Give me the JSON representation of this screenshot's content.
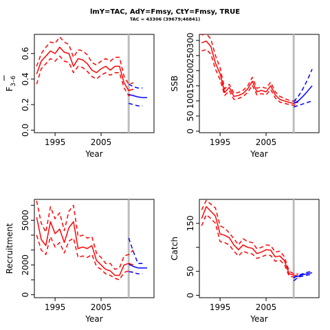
{
  "title": "lmY=TAC, AdY=Fmsy, CtY=Fmsy, TRUE",
  "subtitle": "TAC = 43306 (39679;46841)",
  "colors": {
    "historical": "#ff0000",
    "projection": "#0000ff",
    "marker": "#bdbdbd",
    "axis": "#000000"
  },
  "chart_data": [
    {
      "type": "line",
      "ylabel": "F̅ 3–6",
      "ylabel_main": "F",
      "ylabel_sub": "3–6",
      "xlabel": "Year",
      "xlim": [
        1990.5,
        2016.5
      ],
      "ylim": [
        -0.02,
        0.75
      ],
      "xticks": [
        1995,
        2005
      ],
      "xtick_labels": [
        "1995",
        "2005"
      ],
      "yticks": [
        0,
        0.2,
        0.4,
        0.6
      ],
      "ytick_labels": [
        "0.0",
        "0.2",
        "0.4",
        "0.6"
      ],
      "marker_year": 2011,
      "series": [
        {
          "style": "solid",
          "color": "#ff0000",
          "x": [
            1991,
            1992,
            1993,
            1994,
            1995,
            1996,
            1997,
            1998,
            1999,
            2000,
            2001,
            2002,
            2003,
            2004,
            2005,
            2006,
            2007,
            2008,
            2009,
            2010,
            2011,
            2012
          ],
          "y": [
            0.44,
            0.54,
            0.58,
            0.62,
            0.6,
            0.65,
            0.61,
            0.6,
            0.5,
            0.56,
            0.55,
            0.52,
            0.47,
            0.45,
            0.48,
            0.5,
            0.47,
            0.5,
            0.5,
            0.37,
            0.31,
            0.32
          ]
        },
        {
          "style": "dashed",
          "color": "#ff0000",
          "x": [
            1991,
            1992,
            1993,
            1994,
            1995,
            1996,
            1997,
            1998,
            1999,
            2000,
            2001,
            2002,
            2003,
            2004,
            2005,
            2006,
            2007,
            2008,
            2009,
            2010,
            2011,
            2012
          ],
          "y": [
            0.5,
            0.6,
            0.65,
            0.69,
            0.68,
            0.73,
            0.69,
            0.67,
            0.57,
            0.63,
            0.62,
            0.59,
            0.53,
            0.51,
            0.54,
            0.56,
            0.54,
            0.57,
            0.57,
            0.42,
            0.36,
            0.37
          ]
        },
        {
          "style": "dashed",
          "color": "#ff0000",
          "x": [
            1991,
            1992,
            1993,
            1994,
            1995,
            1996,
            1997,
            1998,
            1999,
            2000,
            2001,
            2002,
            2003,
            2004,
            2005,
            2006,
            2007,
            2008,
            2009,
            2010,
            2011,
            2012
          ],
          "y": [
            0.36,
            0.48,
            0.52,
            0.56,
            0.54,
            0.58,
            0.54,
            0.53,
            0.45,
            0.5,
            0.49,
            0.46,
            0.42,
            0.4,
            0.43,
            0.45,
            0.43,
            0.45,
            0.45,
            0.33,
            0.27,
            0.28
          ]
        },
        {
          "style": "solid",
          "color": "#0000ff",
          "x": [
            2011,
            2012,
            2013,
            2014,
            2015
          ],
          "y": [
            0.28,
            0.27,
            0.26,
            0.255,
            0.255
          ]
        },
        {
          "style": "dashed",
          "color": "#0000ff",
          "x": [
            2011,
            2012,
            2013,
            2014
          ],
          "y": [
            0.36,
            0.34,
            0.33,
            0.33
          ]
        },
        {
          "style": "dashed",
          "color": "#0000ff",
          "x": [
            2011,
            2012,
            2013,
            2014
          ],
          "y": [
            0.21,
            0.2,
            0.19,
            0.19
          ]
        }
      ]
    },
    {
      "type": "line",
      "ylabel": "SSB",
      "xlabel": "Year",
      "xlim": [
        1990.5,
        2016.5
      ],
      "ylim": [
        -5,
        320
      ],
      "xticks": [
        1995,
        2005
      ],
      "xtick_labels": [
        "1995",
        "2005"
      ],
      "yticks": [
        0,
        50,
        100,
        150,
        200,
        250,
        300
      ],
      "ytick_labels": [
        "0",
        "50",
        "100",
        "150",
        "200",
        "250",
        "300"
      ],
      "marker_year": 2011,
      "series": [
        {
          "style": "solid",
          "color": "#ff0000",
          "x": [
            1991,
            1992,
            1993,
            1994,
            1995,
            1996,
            1997,
            1998,
            1999,
            2000,
            2001,
            2002,
            2003,
            2004,
            2005,
            2006,
            2007,
            2008,
            2009,
            2010,
            2011,
            2012
          ],
          "y": [
            292,
            298,
            280,
            225,
            190,
            128,
            145,
            115,
            118,
            125,
            140,
            165,
            130,
            135,
            130,
            150,
            120,
            105,
            100,
            95,
            92,
            96
          ]
        },
        {
          "style": "dashed",
          "color": "#ff0000",
          "x": [
            1991,
            1992,
            1993,
            1994,
            1995,
            1996,
            1997,
            1998,
            1999,
            2000,
            2001,
            2002,
            2003,
            2004,
            2005,
            2006,
            2007,
            2008,
            2009,
            2010,
            2011,
            2012
          ],
          "y": [
            318,
            322,
            305,
            250,
            210,
            140,
            155,
            125,
            128,
            135,
            150,
            178,
            142,
            146,
            142,
            162,
            130,
            115,
            108,
            102,
            99,
            104
          ]
        },
        {
          "style": "dashed",
          "color": "#ff0000",
          "x": [
            1991,
            1992,
            1993,
            1994,
            1995,
            1996,
            1997,
            1998,
            1999,
            2000,
            2001,
            2002,
            2003,
            2004,
            2005,
            2006,
            2007,
            2008,
            2009,
            2010,
            2011,
            2012
          ],
          "y": [
            265,
            270,
            255,
            205,
            170,
            118,
            134,
            105,
            108,
            115,
            128,
            152,
            120,
            124,
            120,
            138,
            110,
            96,
            92,
            88,
            86,
            88
          ]
        },
        {
          "style": "solid",
          "color": "#0000ff",
          "x": [
            2011,
            2012,
            2013,
            2014,
            2015
          ],
          "y": [
            92,
            100,
            115,
            132,
            150
          ]
        },
        {
          "style": "dashed",
          "color": "#0000ff",
          "x": [
            2011,
            2012,
            2013,
            2014,
            2015
          ],
          "y": [
            98,
            115,
            140,
            170,
            205
          ]
        },
        {
          "style": "dashed",
          "color": "#0000ff",
          "x": [
            2011,
            2012,
            2013,
            2014,
            2015
          ],
          "y": [
            80,
            85,
            90,
            95,
            100
          ]
        }
      ]
    },
    {
      "type": "line",
      "ylabel": "Recruitment",
      "xlabel": "Year",
      "xlim": [
        1990.5,
        2016.5
      ],
      "ylim": [
        -200,
        6400
      ],
      "xticks": [
        1995,
        2005
      ],
      "xtick_labels": [
        "1995",
        "2005"
      ],
      "yticks": [
        0,
        2000,
        5000
      ],
      "ytick_labels": [
        "0",
        "2000",
        "5000"
      ],
      "minor_yticks": [
        1000,
        3000,
        4000,
        6000
      ],
      "marker_year": 2011,
      "series": [
        {
          "style": "solid",
          "color": "#ff0000",
          "x": [
            1991,
            1992,
            1993,
            1994,
            1995,
            1996,
            1997,
            1998,
            1999,
            2000,
            2001,
            2002,
            2003,
            2004,
            2005,
            2006,
            2007,
            2008,
            2009,
            2010,
            2011,
            2012
          ],
          "y": [
            5200,
            3700,
            3300,
            4900,
            4100,
            4400,
            3500,
            4500,
            4900,
            3100,
            3200,
            3100,
            3300,
            2300,
            2000,
            1700,
            1600,
            1300,
            1300,
            2000,
            2100,
            2000
          ]
        },
        {
          "style": "dashed",
          "color": "#ff0000",
          "x": [
            1991,
            1992,
            1993,
            1994,
            1995,
            1996,
            1997,
            1998,
            1999,
            2000,
            2001,
            2002,
            2003,
            2004,
            2005,
            2006,
            2007,
            2008,
            2009,
            2010,
            2011,
            2012
          ],
          "y": [
            6300,
            4800,
            4200,
            5900,
            5100,
            5500,
            4300,
            5600,
            6000,
            3900,
            4000,
            3800,
            3900,
            2800,
            2500,
            2100,
            2100,
            1700,
            1800,
            2600,
            2700,
            3000
          ]
        },
        {
          "style": "dashed",
          "color": "#ff0000",
          "x": [
            1991,
            1992,
            1993,
            1994,
            1995,
            1996,
            1997,
            1998,
            1999,
            2000,
            2001,
            2002,
            2003,
            2004,
            2005,
            2006,
            2007,
            2008,
            2009,
            2010,
            2011,
            2012
          ],
          "y": [
            4000,
            3000,
            2700,
            3900,
            3200,
            3500,
            2800,
            3600,
            3800,
            2500,
            2600,
            2500,
            2700,
            1900,
            1700,
            1400,
            1300,
            1100,
            1000,
            1500,
            1600,
            1500
          ]
        },
        {
          "style": "solid",
          "color": "#0000ff",
          "x": [
            2011,
            2012,
            2013,
            2014,
            2015
          ],
          "y": [
            2050,
            1900,
            1800,
            1800,
            1800
          ]
        },
        {
          "style": "dashed",
          "color": "#0000ff",
          "x": [
            2011,
            2012,
            2013,
            2014
          ],
          "y": [
            3800,
            2900,
            2100,
            2100
          ]
        },
        {
          "style": "dashed",
          "color": "#0000ff",
          "x": [
            2011,
            2012,
            2013,
            2014
          ],
          "y": [
            1550,
            1500,
            1400,
            1400
          ]
        }
      ]
    },
    {
      "type": "line",
      "ylabel": "Catch",
      "xlabel": "Year",
      "xlim": [
        1990.5,
        2016.5
      ],
      "ylim": [
        -5,
        200
      ],
      "xticks": [
        1995,
        2005
      ],
      "xtick_labels": [
        "1995",
        "2005"
      ],
      "yticks": [
        0,
        50,
        150
      ],
      "ytick_labels": [
        "0",
        "50",
        "150"
      ],
      "minor_yticks": [
        100
      ],
      "marker_year": 2011,
      "series": [
        {
          "style": "solid",
          "color": "#ff0000",
          "x": [
            1991,
            1992,
            1993,
            1994,
            1995,
            1996,
            1997,
            1998,
            1999,
            2000,
            2001,
            2002,
            2003,
            2004,
            2005,
            2006,
            2007,
            2008,
            2009,
            2010,
            2011,
            2012
          ],
          "y": [
            160,
            185,
            175,
            165,
            128,
            125,
            120,
            105,
            95,
            105,
            100,
            98,
            87,
            90,
            95,
            94,
            80,
            82,
            72,
            45,
            42,
            40
          ]
        },
        {
          "style": "dashed",
          "color": "#ff0000",
          "x": [
            1991,
            1992,
            1993,
            1994,
            1995,
            1996,
            1997,
            1998,
            1999,
            2000,
            2001,
            2002,
            2003,
            2004,
            2005,
            2006,
            2007,
            2008,
            2009,
            2010,
            2011,
            2012
          ],
          "y": [
            178,
            198,
            190,
            182,
            145,
            140,
            130,
            118,
            105,
            118,
            112,
            110,
            97,
            100,
            105,
            104,
            90,
            92,
            80,
            50,
            45,
            44
          ]
        },
        {
          "style": "dashed",
          "color": "#ff0000",
          "x": [
            1991,
            1992,
            1993,
            1994,
            1995,
            1996,
            1997,
            1998,
            1999,
            2000,
            2001,
            2002,
            2003,
            2004,
            2005,
            2006,
            2007,
            2008,
            2009,
            2010,
            2011,
            2012
          ],
          "y": [
            145,
            168,
            160,
            150,
            112,
            110,
            105,
            92,
            82,
            92,
            88,
            86,
            77,
            80,
            84,
            83,
            71,
            73,
            64,
            40,
            38,
            36
          ]
        },
        {
          "style": "solid",
          "color": "#0000ff",
          "x": [
            2011,
            2012,
            2013,
            2014,
            2015
          ],
          "y": [
            38,
            40,
            43,
            45,
            47
          ]
        },
        {
          "style": "dashed",
          "color": "#0000ff",
          "x": [
            2011,
            2012,
            2013,
            2014,
            2015
          ],
          "y": [
            36,
            42,
            45,
            48,
            50
          ]
        },
        {
          "style": "dashed",
          "color": "#0000ff",
          "x": [
            2011,
            2012,
            2013,
            2014,
            2015
          ],
          "y": [
            30,
            38,
            40,
            42,
            44
          ]
        }
      ]
    }
  ]
}
